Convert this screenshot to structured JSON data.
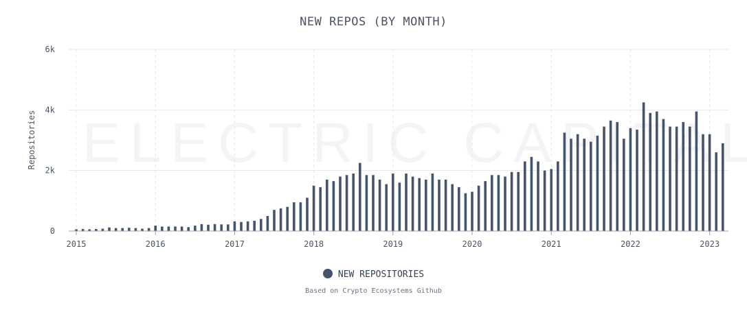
{
  "watermark": "ELECTRIC CAPITAL",
  "footnote": "Based on Crypto Ecosystems Github",
  "colors": {
    "bar": "#44546a",
    "grid": "#e5e7eb",
    "axis": "#9ca3af",
    "text": "#4b5563"
  },
  "chart_data": {
    "type": "bar",
    "title": "NEW REPOS (BY MONTH)",
    "ylabel": "Repositories",
    "xlabel": "",
    "ylim": [
      0,
      6000
    ],
    "yticks": [
      0,
      2000,
      4000,
      6000
    ],
    "ytick_labels": [
      "0",
      "2k",
      "4k",
      "6k"
    ],
    "xticks": [
      "2015",
      "2016",
      "2017",
      "2018",
      "2019",
      "2020",
      "2021",
      "2022",
      "2023"
    ],
    "grid": true,
    "legend_position": "bottom",
    "series": [
      {
        "name": "NEW REPOSITORIES",
        "values": [
          60,
          70,
          60,
          70,
          80,
          120,
          100,
          100,
          110,
          100,
          80,
          100,
          180,
          150,
          150,
          150,
          150,
          130,
          180,
          230,
          210,
          230,
          220,
          220,
          320,
          300,
          320,
          340,
          400,
          500,
          700,
          750,
          800,
          950,
          950,
          1100,
          1500,
          1450,
          1700,
          1650,
          1800,
          1850,
          1900,
          2250,
          1850,
          1850,
          1700,
          1550,
          1900,
          1600,
          1900,
          1800,
          1750,
          1700,
          1900,
          1700,
          1700,
          1550,
          1450,
          1250,
          1300,
          1500,
          1650,
          1850,
          1850,
          1800,
          1950,
          1950,
          2300,
          2450,
          2300,
          2000,
          2050,
          2300,
          3250,
          3050,
          3200,
          3050,
          2950,
          3150,
          3450,
          3650,
          3600,
          3050,
          3400,
          3350,
          4250,
          3900,
          3950,
          3700,
          3450,
          3450,
          3600,
          3450,
          3950,
          3200,
          3200,
          2600,
          2900
        ]
      }
    ]
  }
}
